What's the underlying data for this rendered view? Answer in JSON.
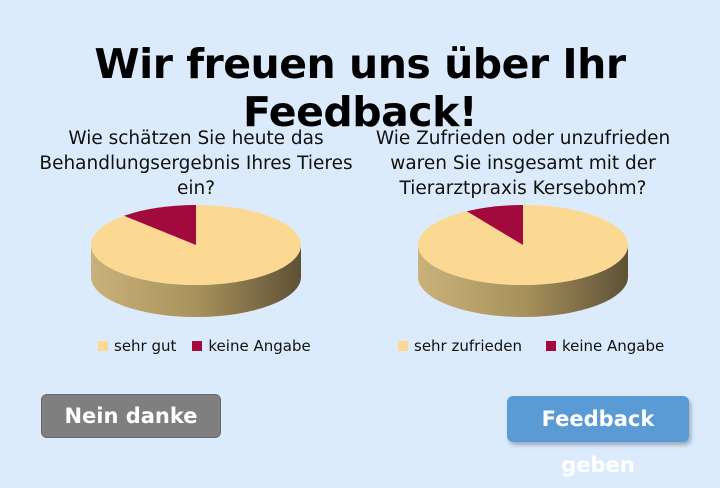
{
  "title": "Wir freuen uns über Ihr Feedback!",
  "buttons": {
    "no": "Nein danke",
    "yes": "Feedback geben"
  },
  "colors": {
    "primary": "#fcd992",
    "secondary": "#a20a3e",
    "no_button": "#7f7f7f",
    "yes_button": "#5b9bd5"
  },
  "chart_data": [
    {
      "type": "pie",
      "title": "Wie schätzen Sie heute das Behandlungsergebnis Ihres Tieres ein?",
      "categories": [
        "sehr gut",
        "keine Angabe"
      ],
      "values": [
        88,
        12
      ],
      "legend": "bottom"
    },
    {
      "type": "pie",
      "title": "Wie Zufrieden oder unzufrieden waren Sie insgesamt mit der Tierarztpraxis Kersebohm?",
      "categories": [
        "sehr zufrieden",
        "keine Angabe"
      ],
      "values": [
        91,
        9
      ],
      "legend": "bottom"
    }
  ]
}
